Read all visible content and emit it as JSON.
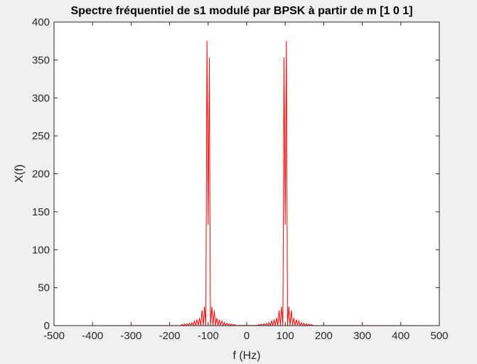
{
  "chart_data": {
    "type": "line",
    "title": "Spectre fréquentiel de s1 modulé par BPSK à partir de m [1 0 1]",
    "xlabel": "f (Hz)",
    "ylabel": "X(f)",
    "xlim": [
      -500,
      500
    ],
    "ylim": [
      0,
      400
    ],
    "xticks": [
      -500,
      -400,
      -300,
      -200,
      -100,
      0,
      100,
      200,
      300,
      400,
      500
    ],
    "yticks": [
      0,
      50,
      100,
      150,
      200,
      250,
      300,
      350,
      400
    ],
    "grid": false,
    "legend": "none",
    "line_color": "#ff0000",
    "series": [
      {
        "peaks": [
          {
            "center": -100,
            "lobes": [
              {
                "f": -103,
                "y": 375
              },
              {
                "f": -97,
                "y": 353
              }
            ],
            "notch": {
              "f": -100,
              "y": 133
            },
            "sidelobes": [
              25,
              20,
              10,
              8,
              6,
              4,
              3,
              2.5,
              2,
              1.5
            ]
          },
          {
            "center": 100,
            "lobes": [
              {
                "f": 97,
                "y": 353
              },
              {
                "f": 103,
                "y": 375
              }
            ],
            "notch": {
              "f": 100,
              "y": 133
            },
            "sidelobes": [
              25,
              20,
              10,
              8,
              6,
              4,
              3,
              2.5,
              2,
              1.5
            ]
          }
        ]
      }
    ]
  }
}
